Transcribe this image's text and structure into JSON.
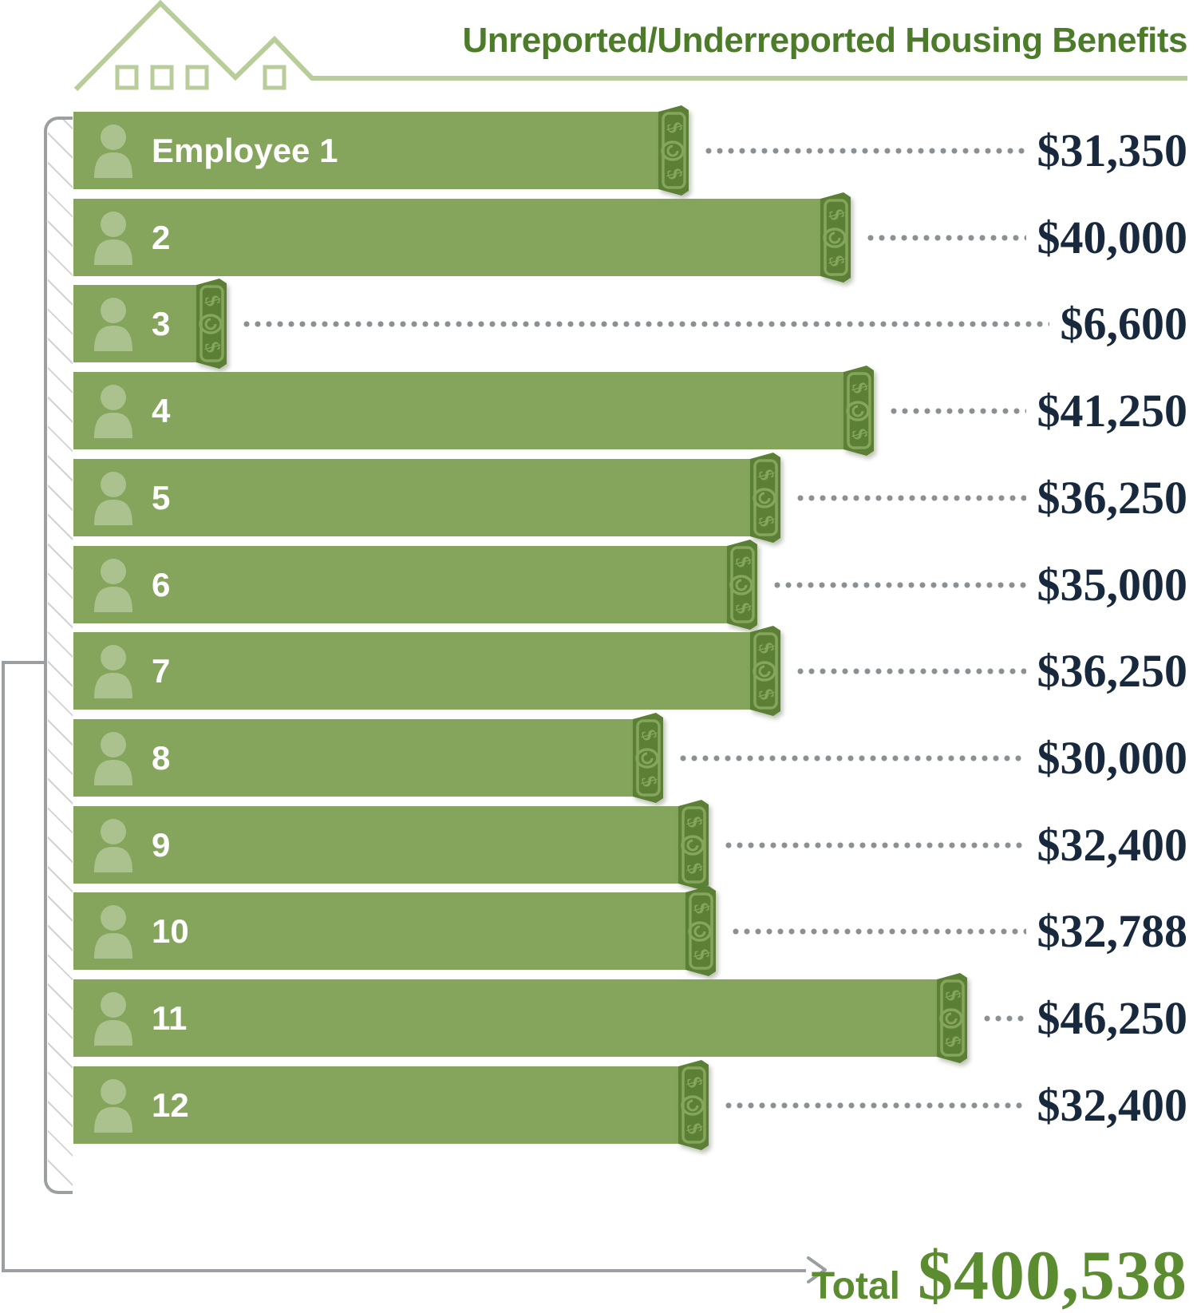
{
  "header": {
    "title": "Unreported/Underreported Housing Benefits"
  },
  "chart_data": {
    "type": "bar",
    "orientation": "horizontal",
    "title": "Unreported/Underreported Housing Benefits",
    "categories": [
      "Employee 1",
      "2",
      "3",
      "4",
      "5",
      "6",
      "7",
      "8",
      "9",
      "10",
      "11",
      "12"
    ],
    "values": [
      31350,
      40000,
      6600,
      41250,
      36250,
      35000,
      36250,
      30000,
      32400,
      32788,
      46250,
      32400
    ],
    "value_labels": [
      "$31,350",
      "$40,000",
      "$6,600",
      "$41,250",
      "$36,250",
      "$35,000",
      "$36,250",
      "$30,000",
      "$32,400",
      "$32,788",
      "$46,250",
      "$32,400"
    ],
    "axis_max": 46250,
    "grid": false,
    "legend_position": "none",
    "total": {
      "label": "Total",
      "value": 400538,
      "value_label": "$400,538"
    }
  },
  "footer": {
    "total_label": "Total",
    "total_value": "$400,538"
  },
  "colors": {
    "bar_green": "#84a55b",
    "bill_green": "#5b7f34",
    "title_green": "#4c7c29",
    "total_green": "#5c8c30",
    "value_navy": "#19293d",
    "bracket_gray": "#9b9fa2",
    "house_light_green": "#b8cd99",
    "dot_gray": "#8b9094"
  },
  "icons": {
    "house": "house-outline-icon",
    "person": "person-icon",
    "money": "dollar-bill-icon",
    "arrow": "arrow-right-icon"
  }
}
